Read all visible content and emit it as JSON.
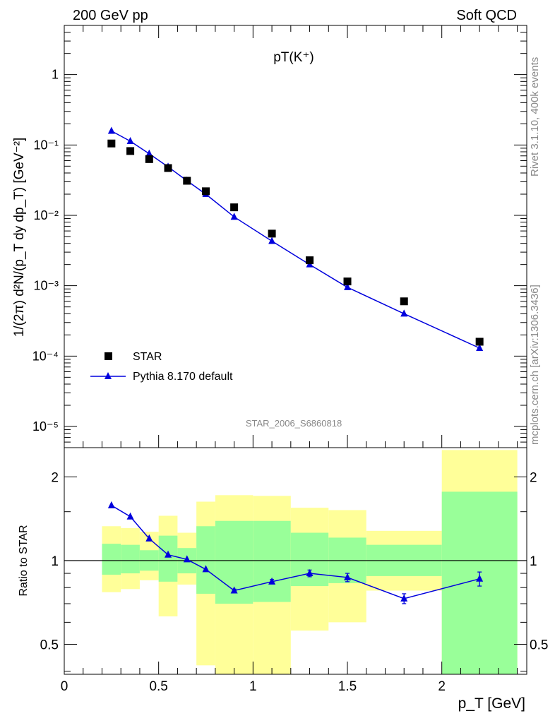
{
  "header": {
    "left": "200 GeV pp",
    "right": "Soft QCD"
  },
  "side_labels": {
    "rivet": "Rivet 3.1.10,  400k events",
    "mcplots": "mcplots.cern.ch [arXiv:1306.3436]"
  },
  "analysis_id": "STAR_2006_S6860818",
  "colors": {
    "mc": "#0000dd",
    "band_outer": "#ffff99",
    "band_inner": "#99ff99",
    "data": "#000000"
  },
  "chart_data": [
    {
      "type": "scatter",
      "title": "pT(K⁺)",
      "ylabel": "1/(2π) d²N/(p_T dy dp_T) [GeV⁻²]",
      "xlabel": "p_T [GeV]",
      "yscale": "log",
      "xlim": [
        0,
        2.45
      ],
      "ylim": [
        5e-06,
        5
      ],
      "x_ticks": [
        "0",
        "0.5",
        "1",
        "1.5",
        "2"
      ],
      "y_ticks": [
        "10⁻⁵",
        "10⁻⁴",
        "10⁻³",
        "10⁻²",
        "10⁻¹",
        "1"
      ],
      "legend_position": "bottom-left",
      "series": [
        {
          "name": "STAR",
          "style": "square-markers",
          "x": [
            0.25,
            0.35,
            0.45,
            0.55,
            0.65,
            0.75,
            0.9,
            1.1,
            1.3,
            1.5,
            1.8,
            2.2
          ],
          "y": [
            0.105,
            0.082,
            0.063,
            0.047,
            0.031,
            0.022,
            0.013,
            0.0055,
            0.0023,
            0.00115,
            0.0006,
            0.00016
          ]
        },
        {
          "name": "Pythia 8.170 default",
          "style": "line-triangles",
          "x": [
            0.25,
            0.35,
            0.45,
            0.55,
            0.65,
            0.75,
            0.9,
            1.1,
            1.3,
            1.5,
            1.8,
            2.2
          ],
          "y": [
            0.158,
            0.113,
            0.075,
            0.049,
            0.031,
            0.02,
            0.0095,
            0.0043,
            0.002,
            0.00095,
            0.0004,
            0.00013
          ]
        }
      ]
    },
    {
      "type": "line",
      "ylabel": "Ratio to STAR",
      "xlabel": "p_T [GeV]",
      "yscale": "log",
      "xlim": [
        0,
        2.45
      ],
      "ylim": [
        0.39,
        2.55
      ],
      "y_ticks": [
        "0.5",
        "1",
        "2"
      ],
      "reference_line": 1,
      "bands": [
        {
          "x0": 0.2,
          "x1": 0.3,
          "outer": [
            0.77,
            1.33
          ],
          "inner": [
            0.89,
            1.15
          ]
        },
        {
          "x0": 0.3,
          "x1": 0.4,
          "outer": [
            0.79,
            1.31
          ],
          "inner": [
            0.9,
            1.14
          ]
        },
        {
          "x0": 0.4,
          "x1": 0.5,
          "outer": [
            0.85,
            1.27
          ],
          "inner": [
            0.92,
            1.09
          ]
        },
        {
          "x0": 0.5,
          "x1": 0.6,
          "outer": [
            0.63,
            1.45
          ],
          "inner": [
            0.84,
            1.23
          ]
        },
        {
          "x0": 0.6,
          "x1": 0.7,
          "outer": [
            0.82,
            1.26
          ],
          "inner": [
            0.9,
            1.11
          ]
        },
        {
          "x0": 0.7,
          "x1": 0.8,
          "outer": [
            0.42,
            1.63
          ],
          "inner": [
            0.76,
            1.33
          ]
        },
        {
          "x0": 0.8,
          "x1": 1.0,
          "outer": [
            0.3,
            1.72
          ],
          "inner": [
            0.7,
            1.39
          ]
        },
        {
          "x0": 1.0,
          "x1": 1.2,
          "outer": [
            0.29,
            1.71
          ],
          "inner": [
            0.71,
            1.39
          ]
        },
        {
          "x0": 1.2,
          "x1": 1.4,
          "outer": [
            0.56,
            1.55
          ],
          "inner": [
            0.81,
            1.26
          ]
        },
        {
          "x0": 1.4,
          "x1": 1.6,
          "outer": [
            0.6,
            1.52
          ],
          "inner": [
            0.83,
            1.21
          ]
        },
        {
          "x0": 1.6,
          "x1": 2.0,
          "outer": [
            0.78,
            1.28
          ],
          "inner": [
            0.88,
            1.14
          ]
        },
        {
          "x0": 2.0,
          "x1": 2.4,
          "outer": [
            0.3,
            2.5
          ],
          "inner": [
            0.3,
            1.77
          ]
        }
      ],
      "series": [
        {
          "name": "Pythia 8.170 default",
          "x": [
            0.25,
            0.35,
            0.45,
            0.55,
            0.65,
            0.75,
            0.9,
            1.1,
            1.3,
            1.5,
            1.8,
            2.2
          ],
          "y": [
            1.58,
            1.44,
            1.2,
            1.05,
            1.01,
            0.93,
            0.78,
            0.84,
            0.9,
            0.87,
            0.73,
            0.86
          ],
          "err": [
            0,
            0,
            0,
            0,
            0,
            0,
            0.01,
            0.015,
            0.025,
            0.03,
            0.03,
            0.05
          ]
        }
      ]
    }
  ]
}
